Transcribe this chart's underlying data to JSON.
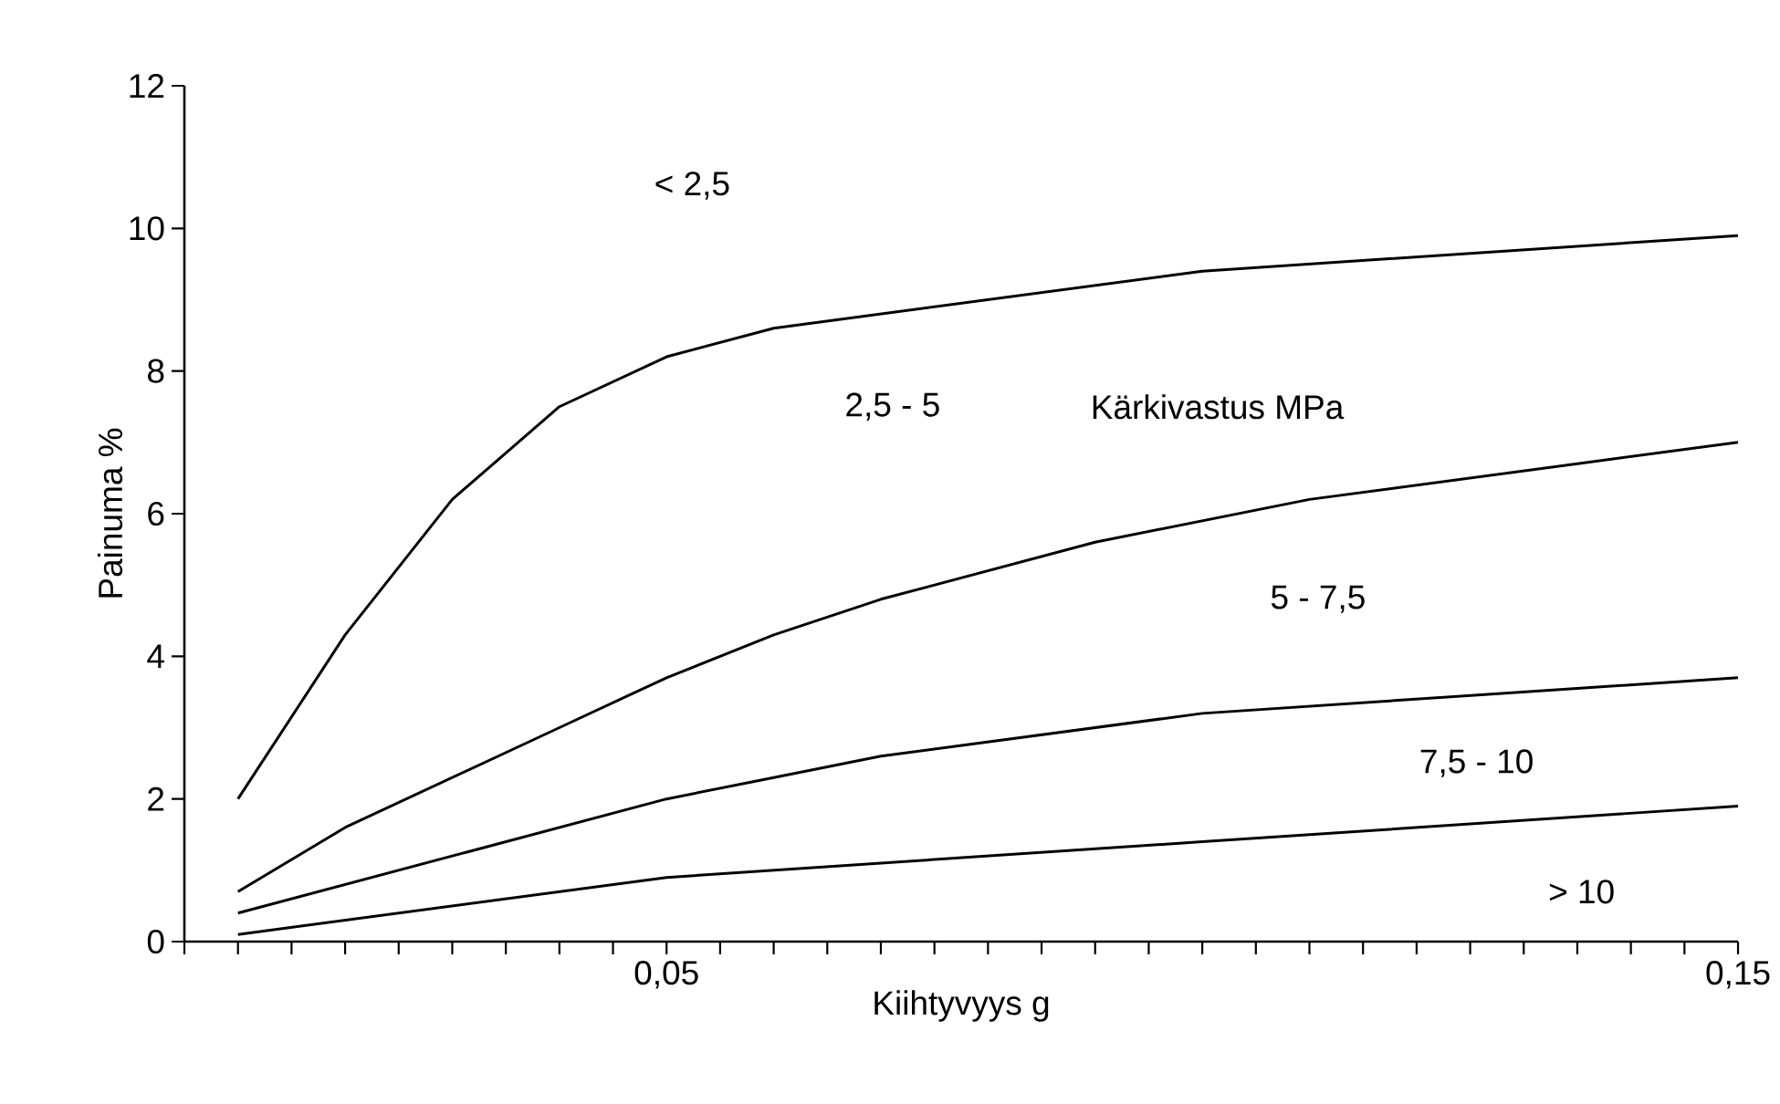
{
  "chart_data": {
    "type": "line",
    "xlabel": "Kiihtyvyys   g",
    "ylabel": "Painuma %",
    "annotations": [
      "< 2,5",
      "2,5 - 5",
      "Kärkivastus MPa",
      "5 - 7,5",
      "7,5 - 10",
      "> 10"
    ],
    "xlim": [
      0.005,
      0.15
    ],
    "ylim": [
      0,
      12
    ],
    "xticks": [
      {
        "value": 0.005,
        "label": null
      },
      {
        "value": 0.01,
        "label": null
      },
      {
        "value": 0.015,
        "label": null
      },
      {
        "value": 0.02,
        "label": null
      },
      {
        "value": 0.025,
        "label": null
      },
      {
        "value": 0.03,
        "label": null
      },
      {
        "value": 0.035,
        "label": null
      },
      {
        "value": 0.04,
        "label": null
      },
      {
        "value": 0.045,
        "label": null
      },
      {
        "value": 0.05,
        "label": "0,05"
      },
      {
        "value": 0.055,
        "label": null
      },
      {
        "value": 0.06,
        "label": null
      },
      {
        "value": 0.065,
        "label": null
      },
      {
        "value": 0.07,
        "label": null
      },
      {
        "value": 0.075,
        "label": null
      },
      {
        "value": 0.08,
        "label": null
      },
      {
        "value": 0.085,
        "label": null
      },
      {
        "value": 0.09,
        "label": null
      },
      {
        "value": 0.095,
        "label": null
      },
      {
        "value": 0.1,
        "label": null
      },
      {
        "value": 0.105,
        "label": null
      },
      {
        "value": 0.11,
        "label": null
      },
      {
        "value": 0.115,
        "label": null
      },
      {
        "value": 0.12,
        "label": null
      },
      {
        "value": 0.125,
        "label": null
      },
      {
        "value": 0.13,
        "label": null
      },
      {
        "value": 0.135,
        "label": null
      },
      {
        "value": 0.14,
        "label": null
      },
      {
        "value": 0.145,
        "label": null
      },
      {
        "value": 0.15,
        "label": "0,15"
      }
    ],
    "yticks": [
      0,
      2,
      4,
      6,
      8,
      10,
      12
    ],
    "grid": false,
    "marker": "none",
    "line_style": "solid",
    "series": [
      {
        "color": "#000000",
        "x": [
          0.01,
          0.02,
          0.03,
          0.04,
          0.05,
          0.06,
          0.1,
          0.15
        ],
        "values": [
          2.0,
          4.3,
          6.2,
          7.5,
          8.2,
          8.6,
          9.4,
          9.9
        ]
      },
      {
        "color": "#000000",
        "x": [
          0.01,
          0.02,
          0.04,
          0.05,
          0.06,
          0.07,
          0.09,
          0.11,
          0.15
        ],
        "values": [
          0.7,
          1.6,
          3.0,
          3.7,
          4.3,
          4.8,
          5.6,
          6.2,
          7.0
        ]
      },
      {
        "color": "#000000",
        "x": [
          0.01,
          0.05,
          0.06,
          0.07,
          0.1,
          0.15
        ],
        "values": [
          0.4,
          2.0,
          2.3,
          2.6,
          3.2,
          3.7
        ]
      },
      {
        "color": "#000000",
        "x": [
          0.01,
          0.05,
          0.1,
          0.15
        ],
        "values": [
          0.1,
          0.9,
          1.4,
          1.9
        ]
      }
    ]
  }
}
